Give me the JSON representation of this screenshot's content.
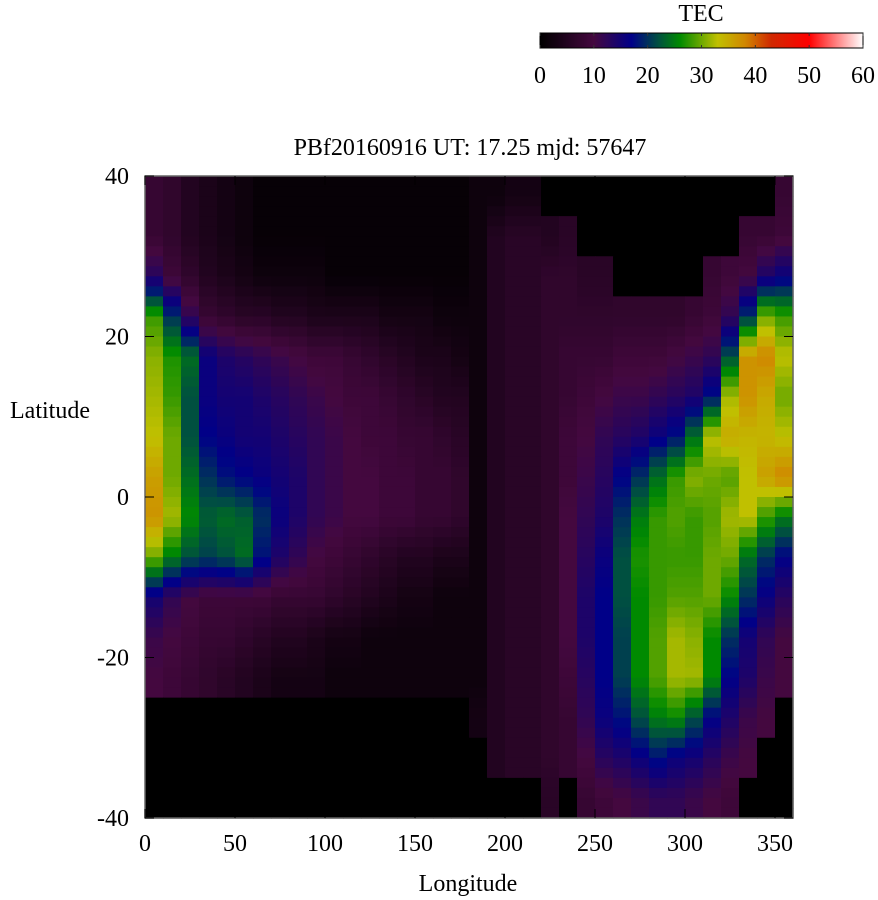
{
  "chart_data": {
    "type": "heatmap",
    "title": "PBf20160916  UT: 17.25  mjd: 57647",
    "xlabel": "Longitude",
    "ylabel": "Latitude",
    "xlim": [
      0,
      360
    ],
    "ylim": [
      -40,
      40
    ],
    "xticks": [
      "0",
      "50",
      "100",
      "150",
      "200",
      "250",
      "300",
      "350"
    ],
    "xtick_values": [
      0,
      50,
      100,
      150,
      200,
      250,
      300,
      350
    ],
    "yticks": [
      "40",
      "20",
      "0",
      "-20",
      "-40"
    ],
    "ytick_values": [
      40,
      20,
      0,
      -20,
      -40
    ],
    "grid": false,
    "colorbar": {
      "label": "TEC",
      "range": [
        0,
        60
      ],
      "ticks": [
        "0",
        "10",
        "20",
        "30",
        "40",
        "50",
        "60"
      ],
      "tick_values": [
        0,
        10,
        20,
        30,
        40,
        50,
        60
      ],
      "placement": "top-right",
      "colormap": [
        [
          0,
          "#000000"
        ],
        [
          10,
          "#44083f"
        ],
        [
          17,
          "#000088"
        ],
        [
          22,
          "#005040"
        ],
        [
          26,
          "#008a00"
        ],
        [
          33,
          "#c0c000"
        ],
        [
          38,
          "#d08800"
        ],
        [
          43,
          "#d02800"
        ],
        [
          50,
          "#ff0000"
        ],
        [
          60,
          "#ffffff"
        ]
      ]
    },
    "lon_centers": [
      5,
      15,
      25,
      35,
      45,
      55,
      65,
      75,
      85,
      95,
      105,
      115,
      125,
      135,
      145,
      155,
      165,
      175,
      185,
      195,
      205,
      215,
      225,
      235,
      245,
      255,
      265,
      275,
      285,
      295,
      305,
      315,
      325,
      335,
      345,
      355
    ],
    "lat_centers": [
      37.5,
      32.5,
      27.5,
      22.5,
      17.5,
      12.5,
      7.5,
      2.5,
      -2.5,
      -7.5,
      -12.5,
      -17.5,
      -22.5,
      -27.5,
      -32.5,
      -37.5
    ],
    "values": [
      [
        8,
        7,
        5,
        4,
        3,
        2,
        1,
        1,
        1,
        1,
        1,
        1,
        1,
        1,
        1,
        1,
        1,
        1,
        2,
        2,
        3,
        3,
        0,
        0,
        0,
        0,
        0,
        0,
        0,
        0,
        0,
        0,
        0,
        0,
        0,
        8
      ],
      [
        8,
        7,
        5,
        4,
        3,
        2,
        1,
        1,
        1,
        1,
        1,
        1,
        1,
        1,
        1,
        1,
        1,
        1,
        2,
        5,
        6,
        6,
        5,
        6,
        0,
        0,
        0,
        0,
        0,
        0,
        0,
        0,
        0,
        8,
        8,
        9
      ],
      [
        13,
        9,
        7,
        5,
        4,
        3,
        2,
        2,
        2,
        2,
        1,
        1,
        1,
        1,
        1,
        1,
        1,
        1,
        2,
        5,
        6,
        6,
        7,
        7,
        6,
        6,
        0,
        0,
        0,
        0,
        0,
        8,
        9,
        10,
        14,
        16
      ],
      [
        28,
        20,
        12,
        8,
        7,
        6,
        6,
        5,
        5,
        4,
        4,
        4,
        4,
        3,
        3,
        3,
        2,
        2,
        2,
        5,
        6,
        6,
        7,
        7,
        7,
        7,
        7,
        7,
        7,
        7,
        8,
        9,
        12,
        20,
        30,
        28
      ],
      [
        31,
        27,
        24,
        16,
        14,
        13,
        12,
        11,
        10,
        9,
        9,
        8,
        7,
        6,
        5,
        4,
        4,
        3,
        2,
        5,
        6,
        6,
        7,
        8,
        8,
        8,
        9,
        9,
        9,
        10,
        11,
        12,
        22,
        37,
        38,
        33
      ],
      [
        32,
        28,
        22,
        16,
        15,
        15,
        14,
        13,
        12,
        11,
        10,
        9,
        9,
        8,
        7,
        6,
        5,
        5,
        2,
        5,
        6,
        6,
        7,
        8,
        9,
        10,
        11,
        11,
        12,
        13,
        14,
        18,
        32,
        37,
        35,
        30
      ],
      [
        33,
        30,
        22,
        17,
        16,
        15,
        15,
        14,
        13,
        12,
        11,
        10,
        9,
        9,
        8,
        8,
        7,
        6,
        2,
        5,
        6,
        6,
        7,
        9,
        10,
        12,
        13,
        14,
        16,
        18,
        24,
        33,
        35,
        34,
        34,
        33
      ],
      [
        36,
        30,
        24,
        20,
        18,
        17,
        16,
        15,
        14,
        12,
        11,
        10,
        10,
        9,
        9,
        8,
        8,
        7,
        2,
        5,
        6,
        6,
        7,
        9,
        11,
        13,
        17,
        20,
        24,
        28,
        31,
        30,
        29,
        33,
        36,
        38
      ],
      [
        37,
        32,
        26,
        23,
        24,
        23,
        20,
        16,
        14,
        12,
        11,
        10,
        10,
        9,
        9,
        8,
        8,
        7,
        2,
        5,
        6,
        6,
        7,
        10,
        12,
        14,
        20,
        25,
        28,
        29,
        28,
        29,
        32,
        33,
        28,
        25
      ],
      [
        30,
        25,
        22,
        21,
        22,
        24,
        18,
        14,
        12,
        10,
        9,
        8,
        7,
        6,
        5,
        5,
        4,
        4,
        2,
        5,
        6,
        6,
        7,
        10,
        13,
        16,
        22,
        27,
        28,
        28,
        28,
        30,
        30,
        24,
        20,
        17
      ],
      [
        15,
        12,
        10,
        9,
        9,
        9,
        9,
        8,
        8,
        8,
        7,
        6,
        5,
        4,
        3,
        3,
        2,
        2,
        2,
        5,
        6,
        6,
        7,
        10,
        14,
        17,
        22,
        26,
        28,
        29,
        29,
        30,
        26,
        20,
        16,
        13
      ],
      [
        11,
        10,
        9,
        8,
        8,
        7,
        6,
        5,
        5,
        4,
        3,
        3,
        2,
        2,
        2,
        2,
        2,
        2,
        2,
        5,
        6,
        6,
        7,
        10,
        14,
        17,
        21,
        26,
        29,
        32,
        31,
        26,
        20,
        15,
        12,
        10
      ],
      [
        10,
        9,
        8,
        7,
        6,
        5,
        4,
        3,
        3,
        3,
        2,
        2,
        2,
        2,
        2,
        2,
        2,
        2,
        2,
        5,
        6,
        6,
        7,
        9,
        13,
        17,
        21,
        26,
        29,
        32,
        32,
        26,
        17,
        14,
        11,
        10
      ],
      [
        0,
        0,
        0,
        0,
        0,
        0,
        0,
        0,
        0,
        0,
        0,
        0,
        0,
        0,
        0,
        0,
        0,
        0,
        3,
        5,
        6,
        6,
        7,
        8,
        12,
        16,
        18,
        22,
        25,
        26,
        22,
        17,
        14,
        11,
        10,
        0
      ],
      [
        0,
        0,
        0,
        0,
        0,
        0,
        0,
        0,
        0,
        0,
        0,
        0,
        0,
        0,
        0,
        0,
        0,
        0,
        0,
        5,
        6,
        6,
        7,
        8,
        10,
        13,
        14,
        16,
        18,
        16,
        15,
        13,
        11,
        10,
        0,
        0
      ],
      [
        0,
        0,
        0,
        0,
        0,
        0,
        0,
        0,
        0,
        0,
        0,
        0,
        0,
        0,
        0,
        0,
        0,
        0,
        0,
        0,
        0,
        0,
        6,
        0,
        8,
        9,
        10,
        11,
        12,
        12,
        11,
        10,
        9,
        0,
        0,
        0
      ]
    ]
  }
}
